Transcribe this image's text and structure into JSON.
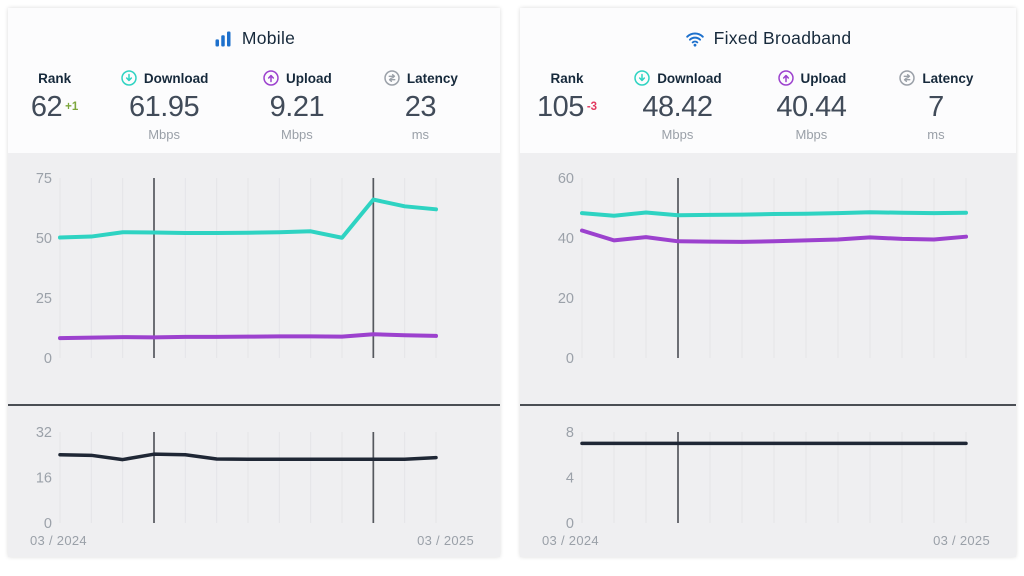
{
  "colors": {
    "brand_blue": "#1d70cc",
    "teal": "#2ed3c2",
    "purple": "#9c41ce",
    "latency_line": "#1f2735",
    "positive": "#7ca63c",
    "negative": "#e23a60"
  },
  "panels": [
    {
      "title": "Mobile",
      "rank": {
        "label": "Rank",
        "value": "62",
        "delta": "+1"
      },
      "download": {
        "label": "Download",
        "value": "61.95",
        "unit": "Mbps"
      },
      "upload": {
        "label": "Upload",
        "value": "9.21",
        "unit": "Mbps"
      },
      "latency": {
        "label": "Latency",
        "value": "23",
        "unit": "ms"
      }
    },
    {
      "title": "Fixed Broadband",
      "rank": {
        "label": "Rank",
        "value": "105",
        "delta": "-3"
      },
      "download": {
        "label": "Download",
        "value": "48.42",
        "unit": "Mbps"
      },
      "upload": {
        "label": "Upload",
        "value": "40.44",
        "unit": "Mbps"
      },
      "latency": {
        "label": "Latency",
        "value": "7",
        "unit": "ms"
      }
    }
  ],
  "chart_data": [
    {
      "id": "mobile-speed",
      "type": "line",
      "title": "Mobile download and upload speed, monthly",
      "points": 13,
      "x_start": "03 / 2024",
      "x_end": "03 / 2025",
      "ylim": [
        0,
        75
      ],
      "yticks": [
        0,
        25,
        50,
        75
      ],
      "grid": "vertical-monthly",
      "legend": "none",
      "marker_indexes": [
        3,
        10
      ],
      "series": [
        {
          "name": "Download (Mbps)",
          "color": "#2ed3c2",
          "width": 4,
          "values": [
            50.2,
            50.6,
            52.4,
            52.3,
            52.1,
            52.1,
            52.2,
            52.4,
            52.8,
            50.1,
            66.0,
            63.2,
            61.95
          ]
        },
        {
          "name": "Upload (Mbps)",
          "color": "#9c41ce",
          "width": 4,
          "values": [
            8.3,
            8.5,
            8.7,
            8.6,
            8.8,
            8.8,
            8.9,
            9.0,
            9.0,
            8.9,
            9.9,
            9.5,
            9.21
          ]
        }
      ]
    },
    {
      "id": "mobile-latency",
      "type": "line",
      "title": "Mobile latency, monthly",
      "points": 13,
      "x_start": "03 / 2024",
      "x_end": "03 / 2025",
      "ylim": [
        0,
        32
      ],
      "yticks": [
        0,
        16,
        32
      ],
      "grid": "vertical-monthly",
      "legend": "none",
      "marker_indexes": [
        3,
        10
      ],
      "series": [
        {
          "name": "Latency (ms)",
          "color": "#1f2735",
          "width": 3.5,
          "values": [
            24,
            23.8,
            22.3,
            24.2,
            24,
            22.5,
            22.4,
            22.4,
            22.4,
            22.4,
            22.4,
            22.4,
            23
          ]
        }
      ]
    },
    {
      "id": "fixed-speed",
      "type": "line",
      "title": "Fixed broadband download and upload speed, monthly",
      "points": 13,
      "x_start": "03 / 2024",
      "x_end": "03 / 2025",
      "ylim": [
        0,
        60
      ],
      "yticks": [
        0,
        20,
        40,
        60
      ],
      "grid": "vertical-monthly",
      "legend": "none",
      "marker_indexes": [
        3
      ],
      "series": [
        {
          "name": "Download (Mbps)",
          "color": "#2ed3c2",
          "width": 4,
          "values": [
            48.3,
            47.4,
            48.5,
            47.6,
            47.7,
            47.8,
            48.0,
            48.1,
            48.3,
            48.6,
            48.4,
            48.3,
            48.42
          ]
        },
        {
          "name": "Upload (Mbps)",
          "color": "#9c41ce",
          "width": 4,
          "values": [
            42.5,
            39.2,
            40.3,
            38.9,
            38.8,
            38.7,
            38.9,
            39.2,
            39.5,
            40.2,
            39.7,
            39.5,
            40.44
          ]
        }
      ]
    },
    {
      "id": "fixed-latency",
      "type": "line",
      "title": "Fixed broadband latency, monthly",
      "points": 13,
      "x_start": "03 / 2024",
      "x_end": "03 / 2025",
      "ylim": [
        0,
        8
      ],
      "yticks": [
        0,
        4,
        8
      ],
      "grid": "vertical-monthly",
      "legend": "none",
      "marker_indexes": [
        3
      ],
      "series": [
        {
          "name": "Latency (ms)",
          "color": "#1f2735",
          "width": 3.5,
          "values": [
            7,
            7,
            7,
            7,
            7,
            7,
            7,
            7,
            7,
            7,
            7,
            7,
            7
          ]
        }
      ]
    }
  ]
}
